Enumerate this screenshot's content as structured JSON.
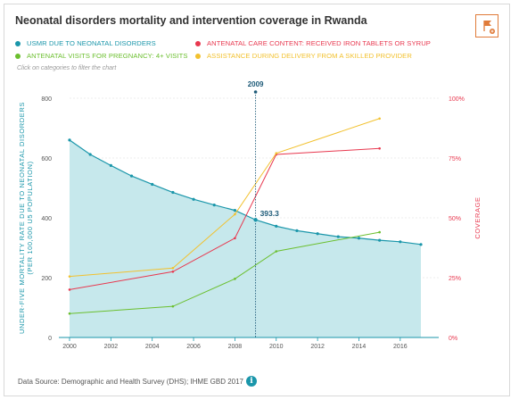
{
  "title": "Neonatal disorders mortality and intervention coverage in Rwanda",
  "hint": "Click on categories to filter the chart",
  "source": "Data Source: Demographic and Health Survey (DHS); IHME GBD 2017",
  "icons": {
    "flag": "flag-icon",
    "info": "info-icon"
  },
  "legend": [
    {
      "label": "USMR DUE TO NEONATAL DISORDERS",
      "color": "#1a96aa"
    },
    {
      "label": "ANTENATAL CARE CONTENT: RECEIVED IRON TABLETS OR SYRUP",
      "color": "#e8384f"
    },
    {
      "label": "ANTENATAL VISITS FOR PREGNANCY: 4+ VISITS",
      "color": "#6bbf2e"
    },
    {
      "label": "ASSISTANCE DURING DELIVERY FROM A SKILLED PROVIDER",
      "color": "#f2c12e"
    }
  ],
  "chart_data": {
    "type": "line",
    "ylabel": "UNDER-FIVE MORTALITY RATE DUE TO NEONATAL DISORDERS (PER 100,000 U5 POPULATION)",
    "y2label": "COVERAGE",
    "xlim": [
      2000,
      2017
    ],
    "ylim": [
      0,
      800
    ],
    "y2lim": [
      0,
      100
    ],
    "xticks": [
      "2000",
      "2002",
      "2004",
      "2006",
      "2008",
      "2010",
      "2012",
      "2014",
      "2016"
    ],
    "yticks": [
      "0",
      "200",
      "400",
      "600",
      "800"
    ],
    "y2ticks": [
      "0%",
      "25%",
      "50%",
      "75%",
      "100%"
    ],
    "marker": {
      "x": 2009,
      "label": "2009",
      "value_label": "393.3"
    },
    "area_series": {
      "name": "USMR DUE TO NEONATAL DISORDERS",
      "color": "#1a96aa",
      "x": [
        2000,
        2001,
        2002,
        2003,
        2004,
        2005,
        2006,
        2007,
        2008,
        2009,
        2010,
        2011,
        2012,
        2013,
        2014,
        2015,
        2016,
        2017
      ],
      "values": [
        660,
        612,
        575,
        540,
        512,
        485,
        462,
        443,
        425,
        393.3,
        372,
        357,
        347,
        337,
        332,
        325,
        320,
        311
      ]
    },
    "series": [
      {
        "name": "ANTENATAL CARE CONTENT: RECEIVED IRON TABLETS OR SYRUP",
        "color": "#e8384f",
        "x": [
          2000,
          2005,
          2008,
          2010,
          2015
        ],
        "values": [
          20,
          27.5,
          41.5,
          76.5,
          79
        ]
      },
      {
        "name": "ANTENATAL VISITS FOR PREGNANCY: 4+ VISITS",
        "color": "#6bbf2e",
        "x": [
          2000,
          2005,
          2008,
          2010,
          2015
        ],
        "values": [
          10,
          13,
          24.5,
          36,
          44
        ]
      },
      {
        "name": "ASSISTANCE DURING DELIVERY FROM A SKILLED PROVIDER",
        "color": "#f2c12e",
        "x": [
          2000,
          2005,
          2008,
          2010,
          2015
        ],
        "values": [
          25.5,
          29,
          51.5,
          77,
          91.5
        ]
      }
    ]
  }
}
